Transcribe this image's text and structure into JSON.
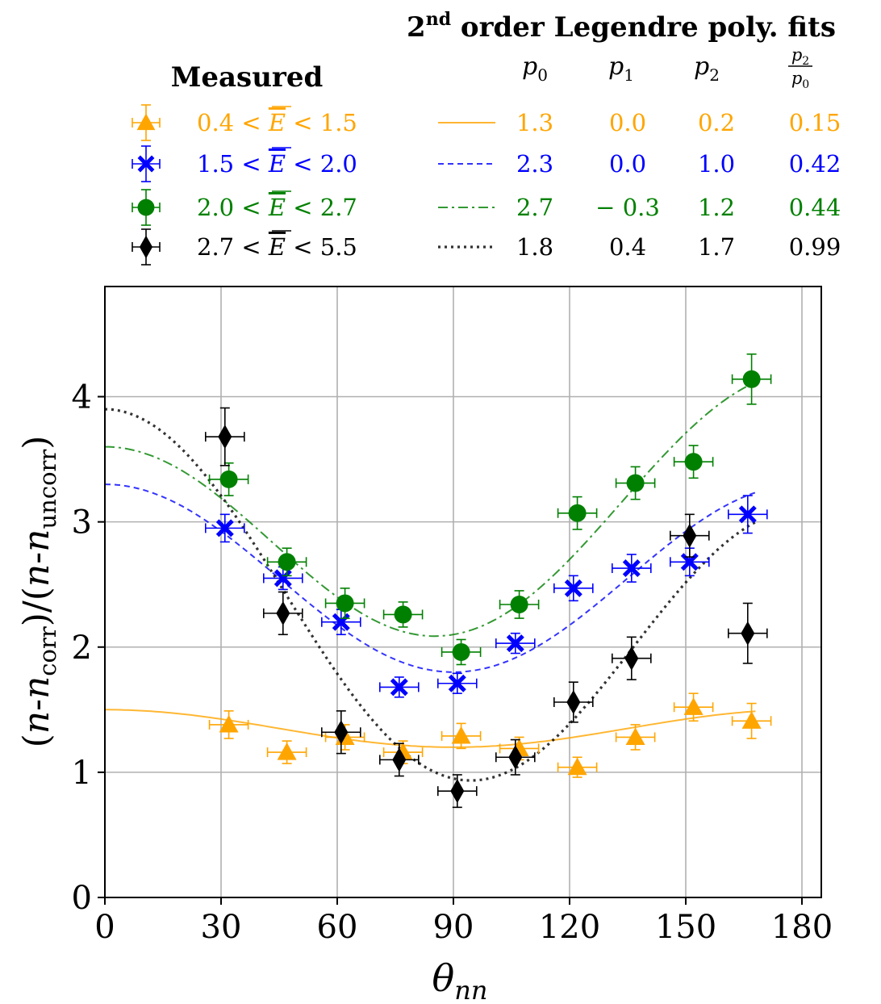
{
  "chart_data": {
    "type": "scatter",
    "xlabel": "θ_nn",
    "ylabel": "(n-n_corr)/(n-n_uncorr)",
    "xlim": [
      0,
      185
    ],
    "ylim": [
      0,
      4.88
    ],
    "xticks": [
      0,
      30,
      60,
      90,
      120,
      150,
      180
    ],
    "yticks": [
      0,
      1,
      2,
      3,
      4
    ],
    "grid": true,
    "measured_title": "Measured",
    "fits_title": "2nd order Legendre poly. fits",
    "fits_title_main": "order Legendre poly. fits",
    "fits_title_num": "2",
    "fits_title_sup": "nd",
    "param_headers": [
      "p0",
      "p1",
      "p2",
      "p2/p0"
    ],
    "series": [
      {
        "name": "0.4 < E < 1.5",
        "label": {
          "lo": "0.4",
          "hi": "1.5"
        },
        "color": "#FFA500",
        "marker": "triangle",
        "linestyle": "solid",
        "x": [
          32,
          47,
          62,
          77,
          92,
          107,
          122,
          137,
          152,
          167
        ],
        "y": [
          1.38,
          1.16,
          1.28,
          1.16,
          1.29,
          1.19,
          1.04,
          1.28,
          1.52,
          1.41
        ],
        "yerr": [
          0.11,
          0.09,
          0.1,
          0.09,
          0.1,
          0.09,
          0.08,
          0.1,
          0.11,
          0.14
        ],
        "xerr": 5,
        "fit": {
          "p0": 1.3,
          "p1": 0.0,
          "p2": 0.2,
          "ratio": 0.15,
          "labels": [
            "1.3",
            "0.0",
            "0.2",
            "0.15"
          ]
        }
      },
      {
        "name": "1.5 < E < 2.0",
        "label": {
          "lo": "1.5",
          "hi": "2.0"
        },
        "color": "#0000FF",
        "marker": "x",
        "linestyle": "dashed",
        "x": [
          31,
          46,
          61,
          76,
          91,
          106,
          121,
          136,
          151,
          166
        ],
        "y": [
          2.95,
          2.55,
          2.2,
          1.68,
          1.71,
          2.03,
          2.47,
          2.63,
          2.68,
          3.06
        ],
        "yerr": [
          0.11,
          0.09,
          0.1,
          0.08,
          0.08,
          0.08,
          0.1,
          0.11,
          0.11,
          0.15
        ],
        "xerr": 5,
        "fit": {
          "p0": 2.3,
          "p1": 0.0,
          "p2": 1.0,
          "ratio": 0.42,
          "labels": [
            "2.3",
            "0.0",
            "1.0",
            "0.42"
          ]
        }
      },
      {
        "name": "2.0 < E < 2.7",
        "label": {
          "lo": "2.0",
          "hi": "2.7"
        },
        "color": "#008000",
        "marker": "circle",
        "linestyle": "dashdot",
        "x": [
          32,
          47,
          62,
          77,
          92,
          107,
          122,
          137,
          152,
          167
        ],
        "y": [
          3.34,
          2.68,
          2.35,
          2.26,
          1.96,
          2.34,
          3.07,
          3.31,
          3.48,
          4.14
        ],
        "yerr": [
          0.13,
          0.11,
          0.12,
          0.1,
          0.1,
          0.11,
          0.13,
          0.13,
          0.13,
          0.2
        ],
        "xerr": 5,
        "fit": {
          "p0": 2.7,
          "p1": -0.3,
          "p2": 1.2,
          "ratio": 0.44,
          "labels": [
            "2.7",
            "− 0.3",
            "1.2",
            "0.44"
          ]
        }
      },
      {
        "name": "2.7 < E < 5.5",
        "label": {
          "lo": "2.7",
          "hi": "5.5"
        },
        "color": "#000000",
        "marker": "diamond",
        "linestyle": "dotted",
        "x": [
          31,
          46,
          61,
          76,
          91,
          106,
          121,
          136,
          151,
          166
        ],
        "y": [
          3.68,
          2.27,
          1.32,
          1.1,
          0.85,
          1.12,
          1.56,
          1.91,
          2.89,
          2.11
        ],
        "yerr": [
          0.23,
          0.17,
          0.17,
          0.13,
          0.13,
          0.14,
          0.16,
          0.17,
          0.17,
          0.24
        ],
        "xerr": 5,
        "fit": {
          "p0": 1.8,
          "p1": 0.4,
          "p2": 1.7,
          "ratio": 0.99,
          "labels": [
            "1.8",
            "0.4",
            "1.7",
            "0.99"
          ]
        }
      }
    ]
  }
}
